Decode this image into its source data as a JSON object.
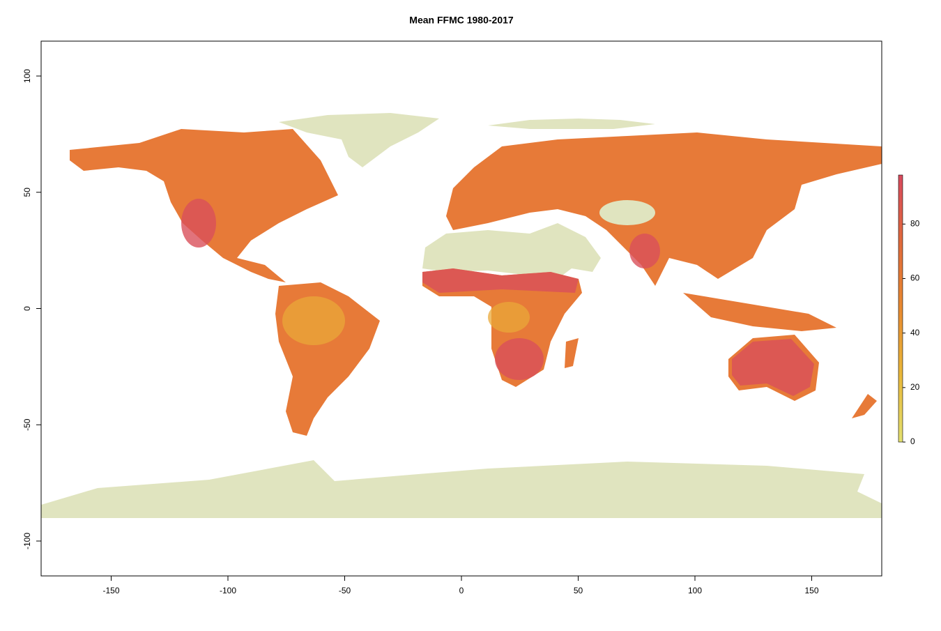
{
  "chart_data": {
    "type": "map",
    "title": "Mean FFMC 1980-2017",
    "xlim": [
      -180,
      180
    ],
    "ylim": [
      -115,
      115
    ],
    "xticks": [
      -150,
      -100,
      -50,
      0,
      50,
      100,
      150
    ],
    "yticks": [
      -100,
      -50,
      0,
      50,
      100
    ],
    "colorbar": {
      "zlim": [
        0,
        98
      ],
      "ticks": [
        0,
        20,
        40,
        60,
        80
      ],
      "colors": [
        "#e3e070",
        "#e9b83a",
        "#e88a30",
        "#e06a3c",
        "#d84a5e"
      ]
    },
    "no_data_color": "#e0e4bf"
  }
}
